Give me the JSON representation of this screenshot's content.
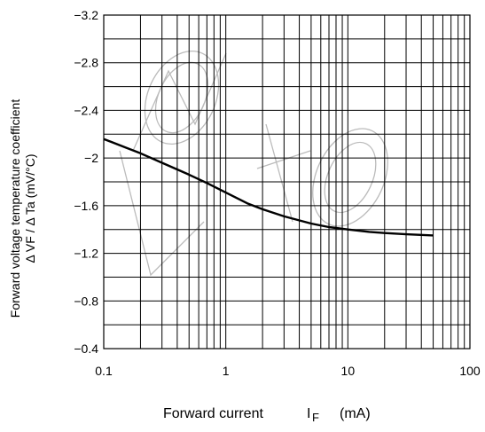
{
  "chart_data": {
    "type": "line",
    "xscale": "log",
    "yscale": "linear",
    "xlim": [
      0.1,
      100
    ],
    "ylim": [
      -0.4,
      -3.2
    ],
    "x_ticks": [
      "0.1",
      "1",
      "10",
      "100"
    ],
    "y_ticks": [
      "−3.2",
      "−2.8",
      "−2.4",
      "−2",
      "−1.6",
      "−1.2",
      "−0.8",
      "−0.4"
    ],
    "ylabel_line1": "Forward voltage temperature coefficient",
    "ylabel_line2": "Δ VF / Δ Ta (mV/°C)",
    "xlabel_main": "Forward current",
    "xlabel_symbol": "I",
    "xlabel_sub": "F",
    "xlabel_unit": "(mA)",
    "grid": true,
    "series": [
      {
        "x": [
          0.1,
          0.15,
          0.2,
          0.3,
          0.5,
          0.7,
          1,
          1.5,
          2,
          3,
          5,
          7,
          10,
          15,
          20,
          30,
          50
        ],
        "y": [
          -2.16,
          -2.09,
          -2.04,
          -1.96,
          -1.86,
          -1.79,
          -1.71,
          -1.62,
          -1.57,
          -1.51,
          -1.45,
          -1.42,
          -1.4,
          -1.38,
          -1.37,
          -1.36,
          -1.35
        ]
      }
    ],
    "color": "#000000",
    "grid_color": "#000000",
    "watermark_color": "#b4b4b4"
  }
}
